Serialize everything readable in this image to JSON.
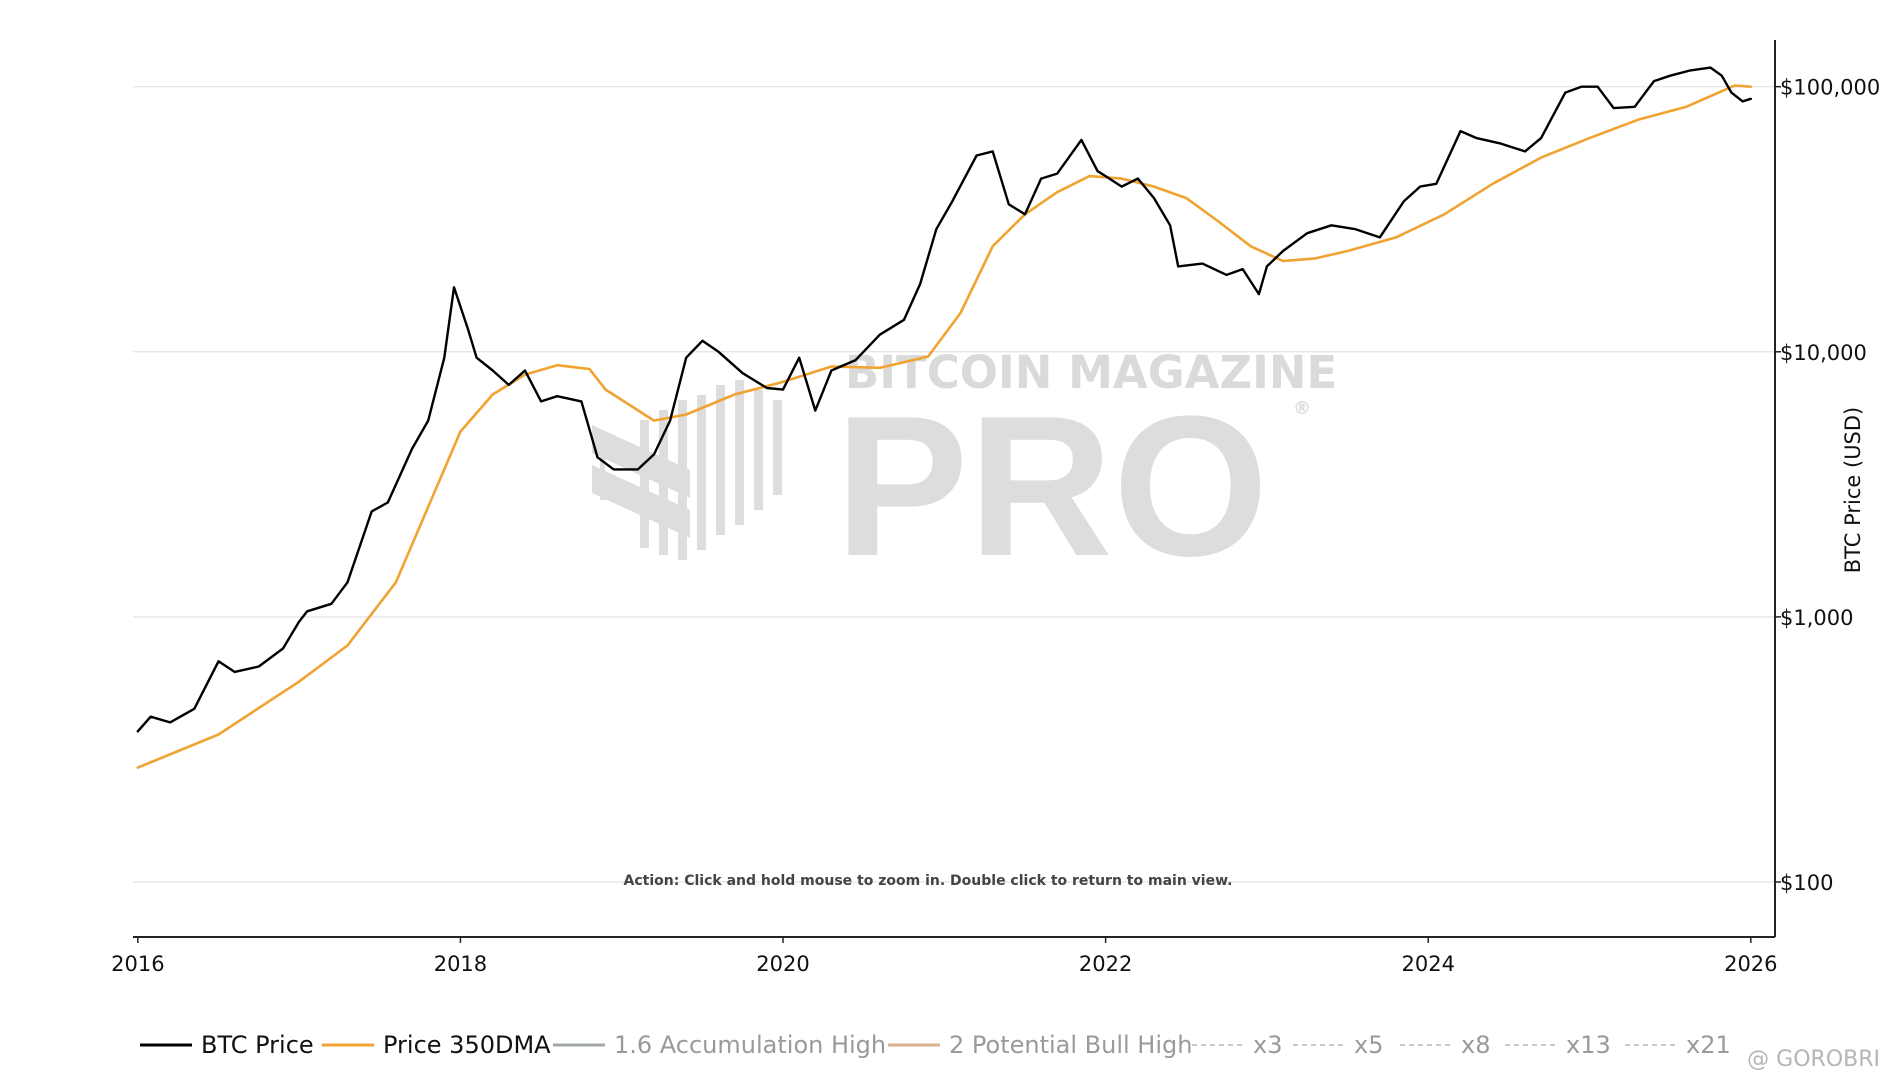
{
  "chart_data": {
    "type": "line",
    "yscale": "log",
    "ylabel": "BTC Price (USD)",
    "xlabel": "",
    "xlim": [
      2015.97,
      2026.15
    ],
    "ylim": [
      62,
      150000
    ],
    "x_ticks": [
      {
        "value": 2016,
        "label": "2016"
      },
      {
        "value": 2018,
        "label": "2018"
      },
      {
        "value": 2020,
        "label": "2020"
      },
      {
        "value": 2022,
        "label": "2022"
      },
      {
        "value": 2024,
        "label": "2024"
      },
      {
        "value": 2026,
        "label": "2026"
      }
    ],
    "y_ticks": [
      {
        "value": 100,
        "label": "$100"
      },
      {
        "value": 1000,
        "label": "$1,000"
      },
      {
        "value": 10000,
        "label": "$10,000"
      },
      {
        "value": 100000,
        "label": "$100,000"
      }
    ],
    "grid": true,
    "series": [
      {
        "name": "BTC Price",
        "color": "#000000",
        "x": [
          2016.0,
          2016.08,
          2016.2,
          2016.35,
          2016.5,
          2016.6,
          2016.75,
          2016.9,
          2017.0,
          2017.05,
          2017.2,
          2017.3,
          2017.45,
          2017.55,
          2017.7,
          2017.8,
          2017.9,
          2017.96,
          2018.05,
          2018.1,
          2018.2,
          2018.3,
          2018.4,
          2018.5,
          2018.6,
          2018.75,
          2018.85,
          2018.95,
          2019.1,
          2019.2,
          2019.3,
          2019.4,
          2019.5,
          2019.6,
          2019.75,
          2019.9,
          2020.0,
          2020.1,
          2020.2,
          2020.3,
          2020.45,
          2020.6,
          2020.75,
          2020.85,
          2020.95,
          2021.05,
          2021.2,
          2021.3,
          2021.4,
          2021.5,
          2021.6,
          2021.7,
          2021.85,
          2021.95,
          2022.0,
          2022.1,
          2022.2,
          2022.3,
          2022.4,
          2022.45,
          2022.6,
          2022.75,
          2022.85,
          2022.95,
          2023.0,
          2023.1,
          2023.25,
          2023.4,
          2023.55,
          2023.7,
          2023.85,
          2023.95,
          2024.05,
          2024.2,
          2024.3,
          2024.45,
          2024.6,
          2024.7,
          2024.85,
          2024.95,
          2025.05,
          2025.15,
          2025.28,
          2025.4,
          2025.5,
          2025.62,
          2025.75,
          2025.82,
          2025.88,
          2025.95,
          2026.0
        ],
        "values": [
          370,
          420,
          400,
          450,
          680,
          620,
          650,
          760,
          960,
          1050,
          1120,
          1350,
          2500,
          2700,
          4300,
          5500,
          9500,
          17500,
          12000,
          9500,
          8500,
          7500,
          8500,
          6500,
          6800,
          6500,
          4000,
          3600,
          3600,
          4100,
          5500,
          9500,
          11000,
          10000,
          8300,
          7300,
          7200,
          9500,
          6000,
          8500,
          9300,
          11600,
          13200,
          18000,
          29000,
          37000,
          55000,
          57000,
          36000,
          33000,
          45000,
          47000,
          63000,
          48000,
          46000,
          42000,
          45000,
          38000,
          30000,
          21000,
          21500,
          19500,
          20500,
          16500,
          21000,
          24000,
          28000,
          30000,
          29000,
          27000,
          37000,
          42000,
          43000,
          68000,
          64000,
          61000,
          57000,
          64000,
          95000,
          100000,
          100000,
          83000,
          84000,
          105000,
          110000,
          115000,
          118000,
          110000,
          95000,
          88000,
          90000
        ]
      },
      {
        "name": "Price 350DMA",
        "color": "#f0a331",
        "x": [
          2016.0,
          2016.5,
          2017.0,
          2017.3,
          2017.6,
          2017.8,
          2018.0,
          2018.2,
          2018.4,
          2018.6,
          2018.8,
          2018.9,
          2019.2,
          2019.4,
          2019.7,
          2020.0,
          2020.3,
          2020.6,
          2020.9,
          2021.1,
          2021.3,
          2021.5,
          2021.7,
          2021.9,
          2022.1,
          2022.3,
          2022.5,
          2022.7,
          2022.9,
          2023.1,
          2023.3,
          2023.5,
          2023.8,
          2024.1,
          2024.4,
          2024.7,
          2025.0,
          2025.3,
          2025.6,
          2025.9,
          2026.0
        ],
        "values": [
          270,
          360,
          570,
          780,
          1350,
          2600,
          5000,
          6900,
          8200,
          8900,
          8600,
          7200,
          5500,
          5800,
          6900,
          7700,
          8800,
          8700,
          9600,
          14000,
          25000,
          33000,
          40000,
          46000,
          45000,
          42000,
          38000,
          31000,
          25000,
          22000,
          22500,
          24000,
          27000,
          33000,
          43000,
          54000,
          64000,
          75000,
          84000,
          101000,
          100000
        ]
      },
      {
        "name": "1.6 Accumulation High",
        "color": "#a0a8a0",
        "values": []
      },
      {
        "name": "2 Potential Bull High",
        "color": "#d8b28e",
        "values": []
      },
      {
        "name": "x3",
        "color": "#c8c8c8",
        "values": []
      },
      {
        "name": "x5",
        "color": "#c8c8c8",
        "values": []
      },
      {
        "name": "x8",
        "color": "#c8c8c8",
        "values": []
      },
      {
        "name": "x13",
        "color": "#c8c8c8",
        "values": []
      },
      {
        "name": "x21",
        "color": "#c8c8c8",
        "values": []
      }
    ]
  },
  "legend": [
    {
      "label": "BTC Price",
      "style": "solid",
      "color": "#000000",
      "active": true
    },
    {
      "label": "Price 350DMA",
      "style": "solid",
      "color": "#f0a331",
      "active": true
    },
    {
      "label": "1.6 Accumulation High",
      "style": "solid",
      "color": "#a0a8a0",
      "active": false
    },
    {
      "label": "2 Potential Bull High",
      "style": "solid",
      "color": "#d8b28e",
      "active": false
    },
    {
      "label": "x3",
      "style": "dash",
      "color": "#c8c8c8",
      "active": false
    },
    {
      "label": "x5",
      "style": "dash",
      "color": "#c8c8c8",
      "active": false
    },
    {
      "label": "x8",
      "style": "dash",
      "color": "#c8c8c8",
      "active": false
    },
    {
      "label": "x13",
      "style": "dash",
      "color": "#c8c8c8",
      "active": false
    },
    {
      "label": "x21",
      "style": "dash",
      "color": "#c8c8c8",
      "active": false
    }
  ],
  "hint_text": "Action: Click and hold mouse to zoom in.  Double click to return to main view.",
  "watermark": {
    "line1": "BITCOIN MAGAZINE",
    "line2": "PRO",
    "reg": "®"
  },
  "credit": "@ GOROBRI",
  "colors": {
    "grid": "#e3e3e3",
    "axis": "#222222",
    "text": "#111111",
    "legend_inactive": "#9a9a9a"
  }
}
